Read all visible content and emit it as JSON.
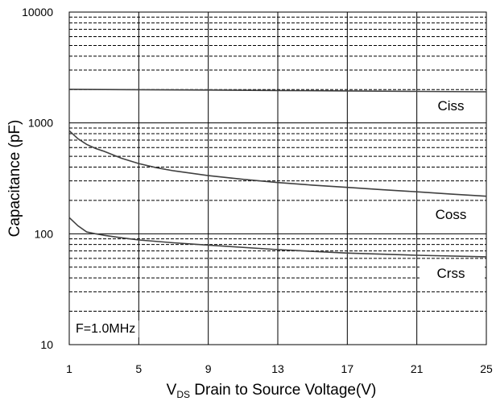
{
  "chart_data": {
    "type": "line",
    "xlabel": {
      "prefix": "V",
      "subscript": "DS",
      "rest": " Drain to Source Voltage(V)"
    },
    "ylabel": "Capacitance (pF)",
    "x_ticks": [
      "1",
      "5",
      "9",
      "13",
      "17",
      "21",
      "25"
    ],
    "xlim": [
      1,
      25
    ],
    "y_ticks": [
      "10",
      "100",
      "1000",
      "10000"
    ],
    "ylim": [
      10,
      10000
    ],
    "y_scale": "log",
    "grid": true,
    "annotation": "F=1.0MHz",
    "series": [
      {
        "name": "Ciss",
        "x": [
          1,
          3,
          5,
          9,
          13,
          17,
          21,
          25
        ],
        "y": [
          2010,
          2000,
          1995,
          1980,
          1960,
          1945,
          1925,
          1910
        ]
      },
      {
        "name": "Coss",
        "x": [
          1,
          1.5,
          2,
          2.5,
          3,
          4,
          5,
          6,
          7,
          9,
          11,
          13,
          15,
          17,
          19,
          21,
          23,
          25
        ],
        "y": [
          850,
          720,
          640,
          590,
          555,
          480,
          430,
          395,
          370,
          335,
          310,
          290,
          275,
          262,
          250,
          239,
          228,
          218
        ]
      },
      {
        "name": "Crss",
        "x": [
          1,
          1.5,
          2,
          2.5,
          3,
          4,
          5,
          7,
          9,
          13,
          17,
          21,
          25
        ],
        "y": [
          140,
          118,
          104,
          100,
          97,
          92,
          88,
          83,
          79,
          72,
          67,
          64,
          62
        ]
      }
    ]
  }
}
